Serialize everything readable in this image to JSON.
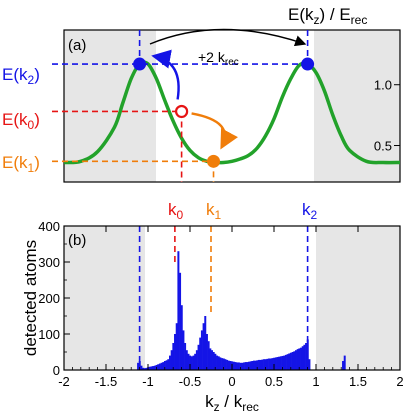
{
  "colors": {
    "band": "#22a22a",
    "blue": "#1414e6",
    "red": "#e61414",
    "orange": "#f07d0a",
    "shade": "#e6e6e6",
    "axis": "#000000"
  },
  "text": {
    "top_ylabel_main": "E(k",
    "top_ylabel_sub": "z",
    "top_ylabel_rest": ") / E",
    "top_ylabel_sub2": "rec",
    "panel_a": "(a)",
    "panel_b": "(b)",
    "arrow_main": "+2 k",
    "arrow_sub": "rec",
    "e2_main": "E(k",
    "e2_sub": "2",
    "e2_end": ")",
    "e0_main": "E(k",
    "e0_sub": "0",
    "e0_end": ")",
    "e1_main": "E(k",
    "e1_sub": "1",
    "e1_end": ")",
    "k0_main": "k",
    "k0_sub": "0",
    "k1_main": "k",
    "k1_sub": "1",
    "k2_main": "k",
    "k2_sub": "2",
    "ylabel_b": "detected atoms",
    "xlabel_main": "k",
    "xlabel_sub": "z",
    "xlabel_rest": " / k",
    "xlabel_sub2": "rec"
  },
  "chart_data": [
    {
      "type": "line",
      "panel": "(a)",
      "xlim": [
        -2,
        2
      ],
      "ylim": [
        0.2,
        1.45
      ],
      "y_ticks": [
        0.5,
        1.0
      ],
      "y_tick_labels": [
        "0.5",
        "1.0"
      ],
      "shaded_regions": [
        [
          -2,
          -1
        ],
        [
          1,
          2
        ]
      ],
      "band_curve": {
        "x": [
          -2,
          -1.8,
          -1.6,
          -1.4,
          -1.3,
          -1.2,
          -1.1,
          -1.0,
          -0.9,
          -0.8,
          -0.7,
          -0.6,
          -0.5,
          -0.4,
          -0.3,
          -0.2,
          -0.1,
          0.0,
          0.1,
          0.2,
          0.3,
          0.4,
          0.5,
          0.6,
          0.7,
          0.8,
          0.9,
          1.0,
          1.1,
          1.2,
          1.3,
          1.4,
          1.6,
          1.8,
          2.0
        ],
        "y": [
          0.36,
          0.37,
          0.45,
          0.65,
          0.85,
          1.05,
          1.17,
          1.17,
          1.05,
          0.87,
          0.7,
          0.56,
          0.46,
          0.4,
          0.37,
          0.36,
          0.36,
          0.37,
          0.39,
          0.42,
          0.48,
          0.58,
          0.72,
          0.9,
          1.05,
          1.16,
          1.17,
          1.1,
          0.95,
          0.75,
          0.58,
          0.46,
          0.37,
          0.36,
          0.36
        ]
      },
      "points": [
        {
          "name": "k0",
          "x": -0.6,
          "y": 0.78,
          "label": "E(k0)"
        },
        {
          "name": "k1",
          "x": -0.22,
          "y": 0.37,
          "label": "E(k1)"
        },
        {
          "name": "k2_left",
          "x": -1.1,
          "y": 1.17,
          "label": "E(k2)"
        },
        {
          "name": "k2_right",
          "x": 0.9,
          "y": 1.17,
          "label": "E(k2)"
        }
      ]
    },
    {
      "type": "bar",
      "panel": "(b)",
      "xlabel": "kz / krec",
      "ylabel": "detected atoms",
      "xlim": [
        -2,
        2
      ],
      "ylim": [
        0,
        400
      ],
      "x_ticks": [
        -2,
        -1.5,
        -1,
        -0.5,
        0,
        0.5,
        1,
        1.5,
        2
      ],
      "x_tick_labels": [
        "-2",
        "-1.5",
        "-1",
        "-0.5",
        "0",
        "0.5",
        "1",
        "1.5",
        "2"
      ],
      "y_ticks": [
        0,
        100,
        200,
        300,
        400
      ],
      "y_tick_labels": [
        "0",
        "100",
        "200",
        "300",
        "400"
      ],
      "shaded_regions": [
        [
          -2,
          -1.05
        ],
        [
          0.95,
          2
        ]
      ],
      "bin_width": 0.02,
      "x": [
        -1.12,
        -1.1,
        -1.08,
        -1.06,
        -1.04,
        -1.02,
        -1.0,
        -0.98,
        -0.96,
        -0.94,
        -0.92,
        -0.9,
        -0.88,
        -0.86,
        -0.84,
        -0.82,
        -0.8,
        -0.78,
        -0.76,
        -0.74,
        -0.72,
        -0.7,
        -0.68,
        -0.66,
        -0.64,
        -0.62,
        -0.6,
        -0.58,
        -0.56,
        -0.54,
        -0.52,
        -0.5,
        -0.48,
        -0.46,
        -0.44,
        -0.42,
        -0.4,
        -0.38,
        -0.36,
        -0.34,
        -0.32,
        -0.3,
        -0.28,
        -0.26,
        -0.24,
        -0.22,
        -0.2,
        -0.18,
        -0.16,
        -0.14,
        -0.12,
        -0.1,
        -0.08,
        -0.06,
        -0.04,
        -0.02,
        0.0,
        0.02,
        0.04,
        0.06,
        0.08,
        0.1,
        0.12,
        0.14,
        0.16,
        0.18,
        0.2,
        0.22,
        0.24,
        0.26,
        0.28,
        0.3,
        0.32,
        0.34,
        0.36,
        0.38,
        0.4,
        0.42,
        0.44,
        0.46,
        0.48,
        0.5,
        0.52,
        0.54,
        0.56,
        0.58,
        0.6,
        0.62,
        0.64,
        0.66,
        0.68,
        0.7,
        0.72,
        0.74,
        0.76,
        0.78,
        0.8,
        0.82,
        0.84,
        0.86,
        0.88,
        0.9,
        0.92,
        1.32,
        1.34
      ],
      "values": [
        20,
        25,
        12,
        6,
        5,
        6,
        8,
        9,
        10,
        11,
        12,
        14,
        16,
        18,
        20,
        22,
        25,
        27,
        30,
        40,
        55,
        75,
        100,
        130,
        330,
        270,
        180,
        110,
        75,
        55,
        45,
        40,
        38,
        40,
        45,
        55,
        70,
        90,
        110,
        130,
        150,
        100,
        80,
        60,
        55,
        50,
        45,
        40,
        38,
        35,
        33,
        32,
        30,
        28,
        26,
        25,
        24,
        23,
        22,
        21,
        21,
        20,
        20,
        21,
        22,
        22,
        23,
        24,
        25,
        26,
        26,
        27,
        28,
        28,
        29,
        30,
        30,
        31,
        32,
        32,
        33,
        34,
        35,
        36,
        37,
        38,
        39,
        40,
        42,
        44,
        46,
        48,
        50,
        52,
        55,
        58,
        60,
        62,
        66,
        70,
        75,
        85,
        30,
        25,
        40
      ]
    }
  ]
}
